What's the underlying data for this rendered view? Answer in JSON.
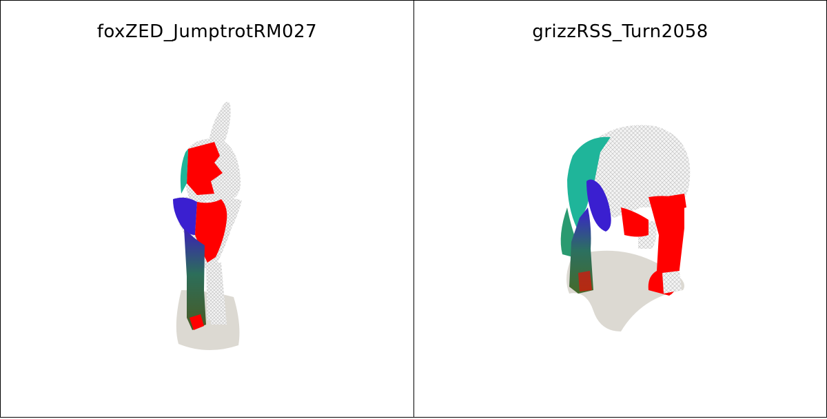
{
  "panels": [
    {
      "title": "foxZED_JumptrotRM027"
    },
    {
      "title": "grizzRSS_Turn2058"
    }
  ],
  "colors": {
    "mesh_white": "#f2f2f2",
    "wire": "#b8b8b8",
    "red": "#ff0000",
    "blue": "#3a1fd0",
    "teal": "#1fb59a",
    "green": "#2e7d3a",
    "shadow": "#dcd9d2"
  }
}
